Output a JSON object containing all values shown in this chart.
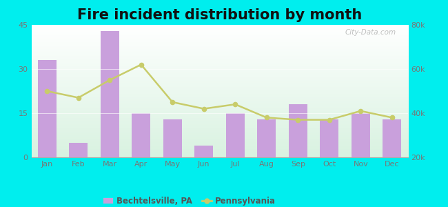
{
  "title": "Fire incident distribution by month",
  "months": [
    "Jan",
    "Feb",
    "Mar",
    "Apr",
    "May",
    "Jun",
    "Jul",
    "Aug",
    "Sep",
    "Oct",
    "Nov",
    "Dec"
  ],
  "bar_values": [
    33,
    5,
    43,
    15,
    13,
    4,
    15,
    13,
    18,
    13,
    15,
    13
  ],
  "line_values": [
    50000,
    47000,
    55000,
    62000,
    45000,
    42000,
    44000,
    38000,
    37000,
    37000,
    41000,
    38000
  ],
  "bar_color": "#c9a0dc",
  "line_color": "#c8cc6a",
  "background_color": "#00eeee",
  "left_ylim": [
    0,
    45
  ],
  "right_ylim": [
    20000,
    80000
  ],
  "left_yticks": [
    0,
    15,
    30,
    45
  ],
  "right_yticks": [
    20000,
    40000,
    60000,
    80000
  ],
  "title_fontsize": 15,
  "legend_label_bar": "Bechtelsville, PA",
  "legend_label_line": "Pennsylvania",
  "watermark": "City-Data.com"
}
